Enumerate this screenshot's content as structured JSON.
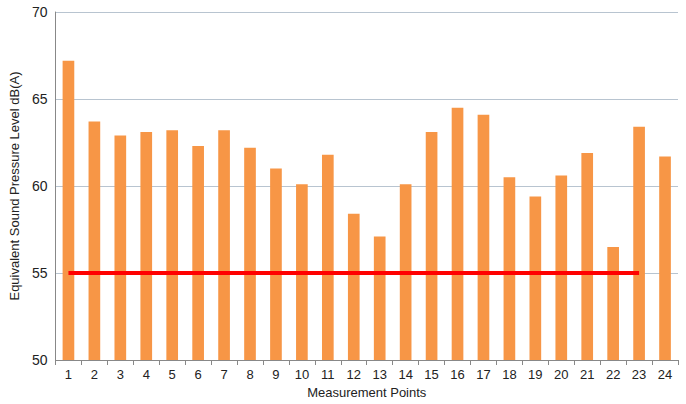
{
  "chart_data": {
    "type": "bar",
    "x_label": "Measurement Points",
    "y_label": "Equivalent Sound Pressure Level dB(A)",
    "categories": [
      "1",
      "2",
      "3",
      "4",
      "5",
      "6",
      "7",
      "8",
      "9",
      "10",
      "11",
      "12",
      "13",
      "14",
      "15",
      "16",
      "17",
      "18",
      "19",
      "20",
      "21",
      "22",
      "23",
      "24"
    ],
    "values": [
      67.2,
      63.7,
      62.9,
      63.1,
      63.2,
      62.3,
      63.2,
      62.2,
      61.0,
      60.1,
      61.8,
      58.4,
      57.1,
      60.1,
      63.1,
      64.5,
      64.1,
      60.5,
      59.4,
      60.6,
      61.9,
      56.5,
      63.4,
      61.7
    ],
    "color": "#f79646",
    "ylim": [
      50,
      70
    ],
    "yticks": [
      50,
      55,
      60,
      65,
      70
    ],
    "grid": true,
    "reference_line": {
      "value": 55,
      "start": "1",
      "end": "23",
      "color": "#ff0000"
    }
  }
}
